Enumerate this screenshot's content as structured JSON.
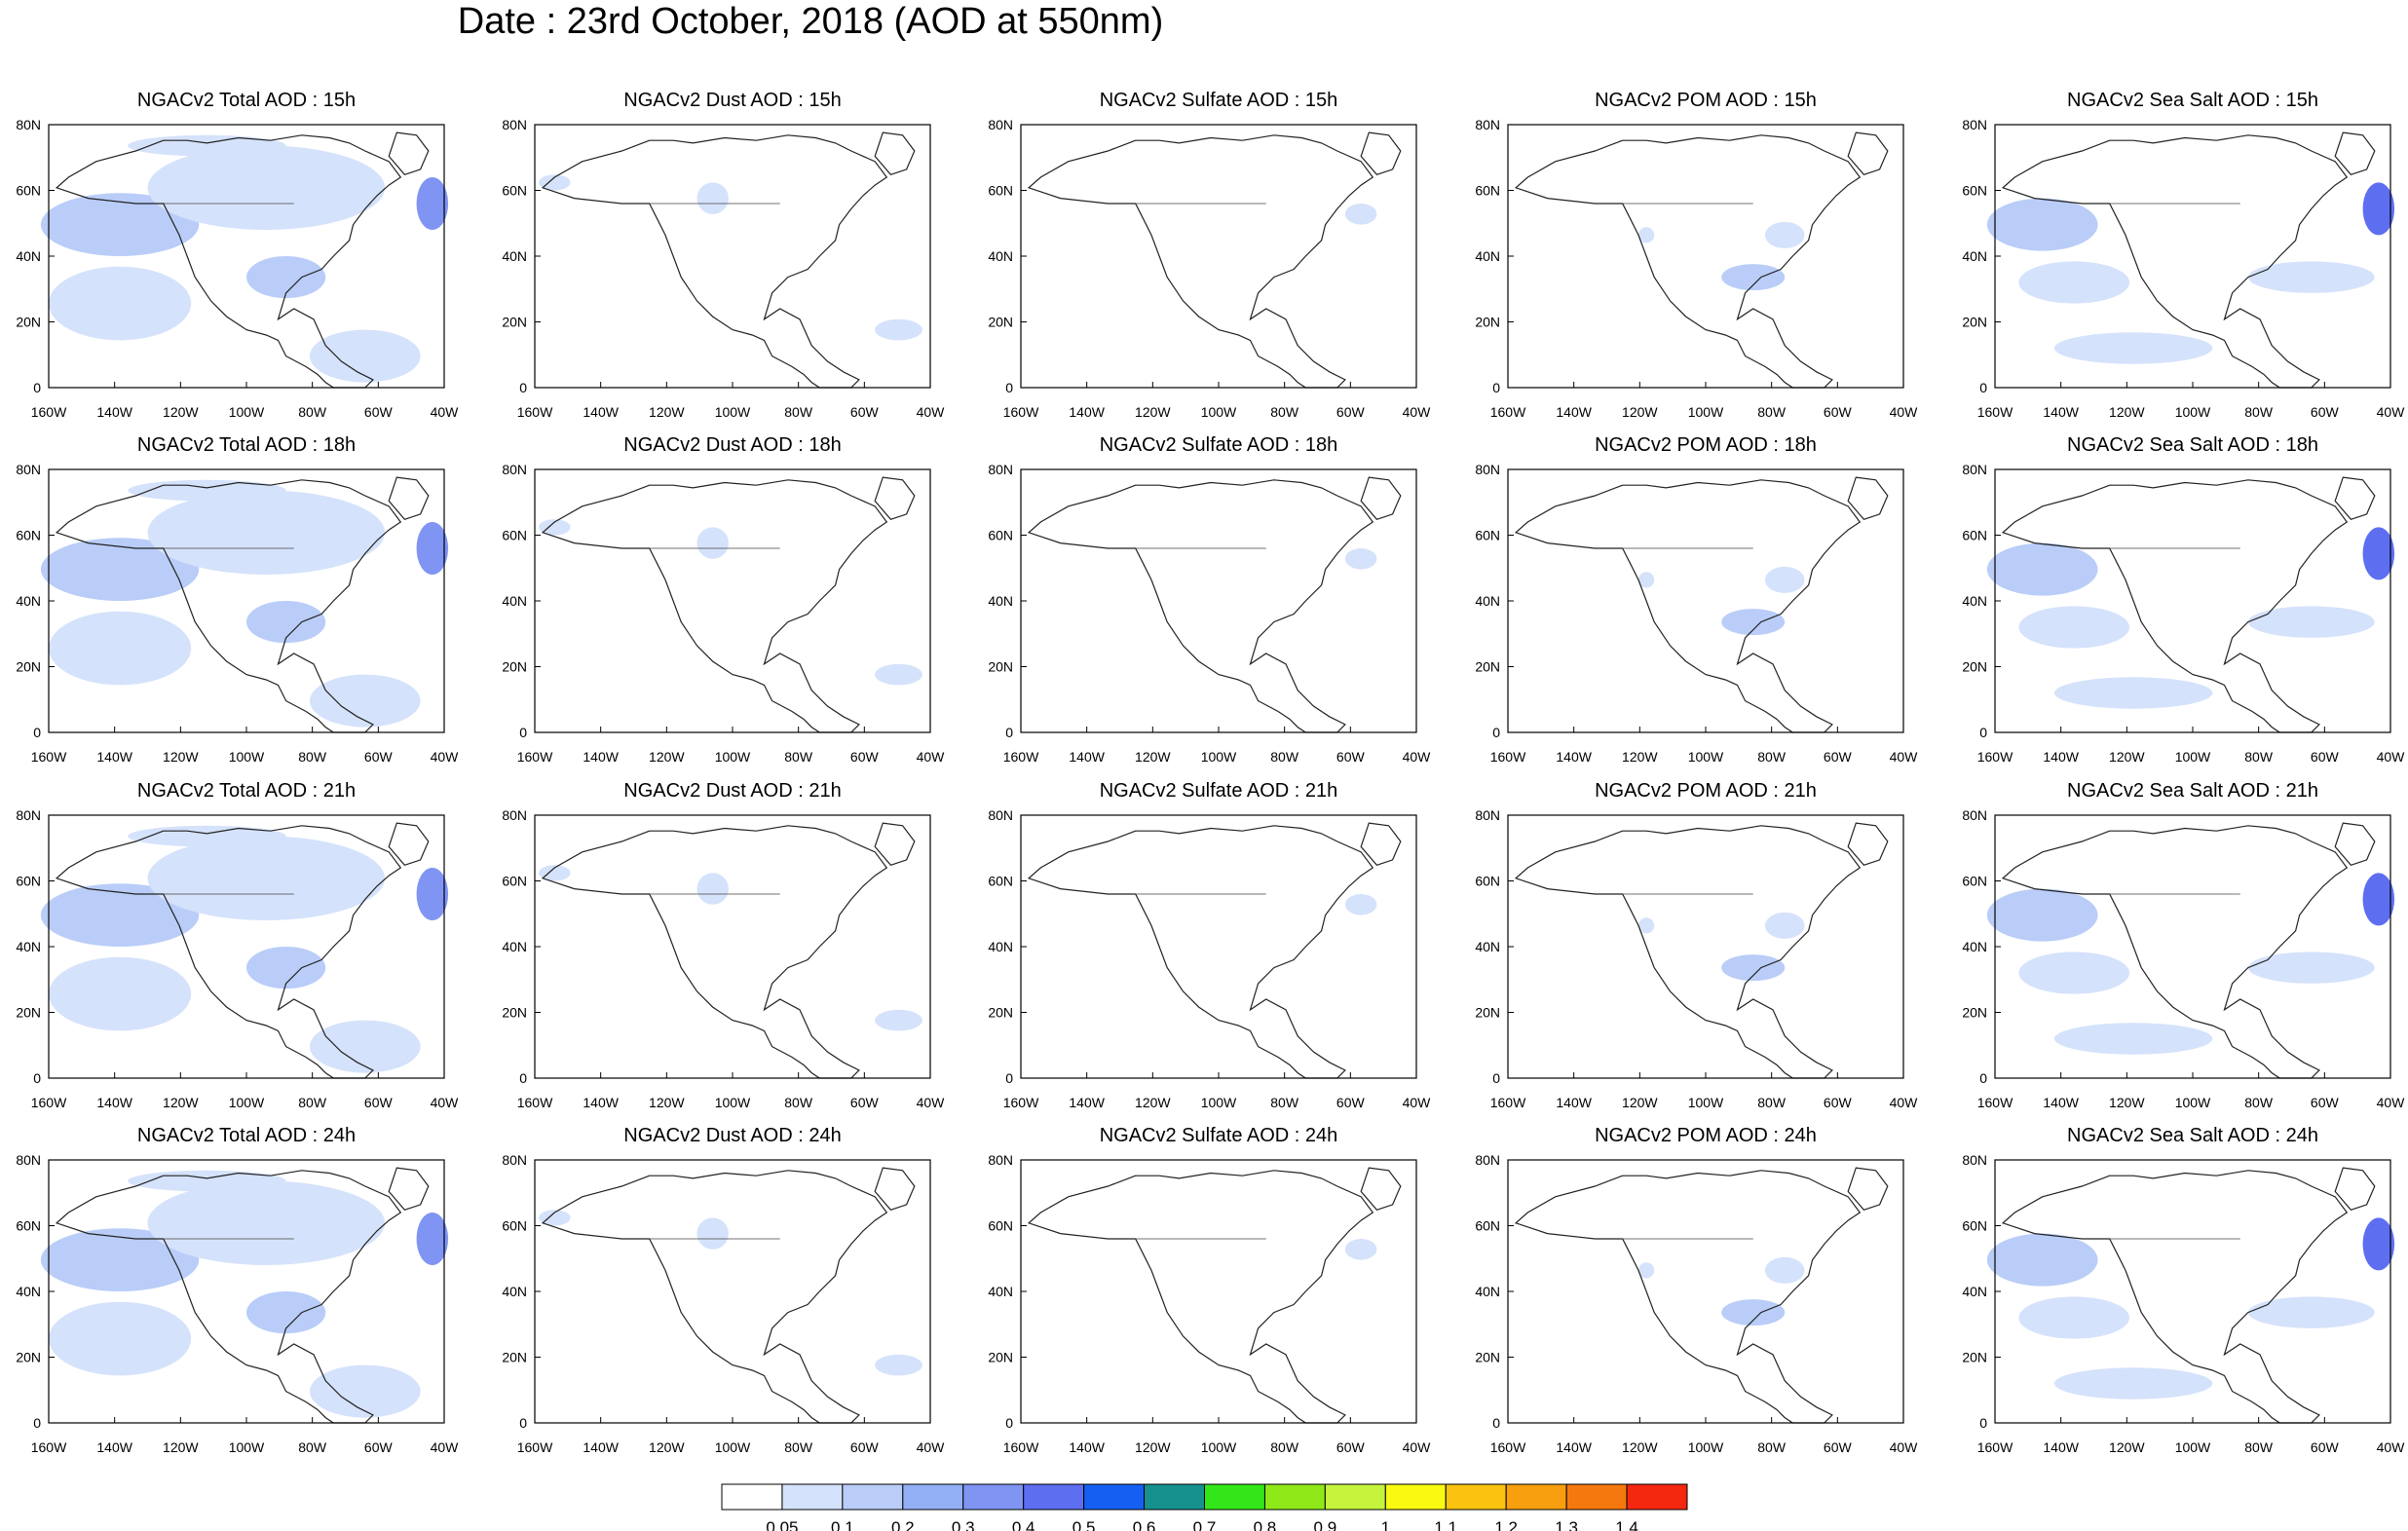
{
  "title": "Date : 23rd October, 2018 (AOD at 550nm)",
  "columns": [
    {
      "label_15": "NGACv2 Total AOD : 15h",
      "label_18": "NGACv2 Total AOD : 18h",
      "label_21": "NGACv2 Total AOD : 21h",
      "label_24": "NGACv2 Total AOD : 24h"
    },
    {
      "label_15": "NGACv2 Dust AOD : 15h",
      "label_18": "NGACv2 Dust AOD : 18h",
      "label_21": "NGACv2 Dust AOD : 21h",
      "label_24": "NGACv2 Dust AOD : 24h"
    },
    {
      "label_15": "NGACv2 Sulfate AOD : 15h",
      "label_18": "NGACv2 Sulfate AOD : 18h",
      "label_21": "NGACv2 Sulfate AOD : 21h",
      "label_24": "NGACv2 Sulfate AOD : 24h"
    },
    {
      "label_15": "NGACv2 POM AOD : 15h",
      "label_18": "NGACv2 POM AOD : 18h",
      "label_21": "NGACv2 POM AOD : 21h",
      "label_24": "NGACv2 POM AOD : 24h"
    },
    {
      "label_15": "NGACv2 Sea Salt AOD : 15h",
      "label_18": "NGACv2 Sea Salt AOD : 18h",
      "label_21": "NGACv2 Sea Salt AOD : 21h",
      "label_24": "NGACv2 Sea Salt  AOD : 24h"
    }
  ],
  "rows": [
    "label_15",
    "label_18",
    "label_21",
    "label_24"
  ],
  "axes": {
    "lat_ticks": [
      "80N",
      "60N",
      "40N",
      "20N",
      "0"
    ],
    "lon_ticks": [
      "160W",
      "140W",
      "120W",
      "100W",
      "80W",
      "60W",
      "40W"
    ]
  },
  "colorbar": {
    "labels": [
      "0.05",
      "0.1",
      "0.2",
      "0.3",
      "0.4",
      "0.5",
      "0.6",
      "0.7",
      "0.8",
      "0.9",
      "1",
      "1.1",
      "1.2",
      "1.3",
      "1.4"
    ],
    "colors": [
      "#ffffff",
      "#d5e2fb",
      "#b9cdf8",
      "#93b0f6",
      "#7f94f3",
      "#5d6ef1",
      "#1560f3",
      "#16918e",
      "#33e619",
      "#8fe818",
      "#c6f33c",
      "#f9f912",
      "#f9c30f",
      "#f79f0f",
      "#f5780e",
      "#f4270f"
    ]
  },
  "chart_data": {
    "type": "heatmap",
    "title": "Date : 23rd October, 2018 (AOD at 550nm)",
    "region": {
      "lon_range": [
        "160W",
        "40W"
      ],
      "lat_range": [
        "0",
        "80N"
      ]
    },
    "species": [
      "Total",
      "Dust",
      "Sulfate",
      "POM",
      "Sea Salt"
    ],
    "forecast_hours": [
      "15h",
      "18h",
      "21h",
      "24h"
    ],
    "color_levels": [
      0.05,
      0.1,
      0.2,
      0.3,
      0.4,
      0.5,
      0.6,
      0.7,
      0.8,
      0.9,
      1,
      1.1,
      1.2,
      1.3,
      1.4
    ],
    "observed_max_level": {
      "Total": 0.6,
      "Dust": 0.2,
      "Sulfate": 0.2,
      "POM": 0.2,
      "Sea Salt": 0.6
    }
  }
}
